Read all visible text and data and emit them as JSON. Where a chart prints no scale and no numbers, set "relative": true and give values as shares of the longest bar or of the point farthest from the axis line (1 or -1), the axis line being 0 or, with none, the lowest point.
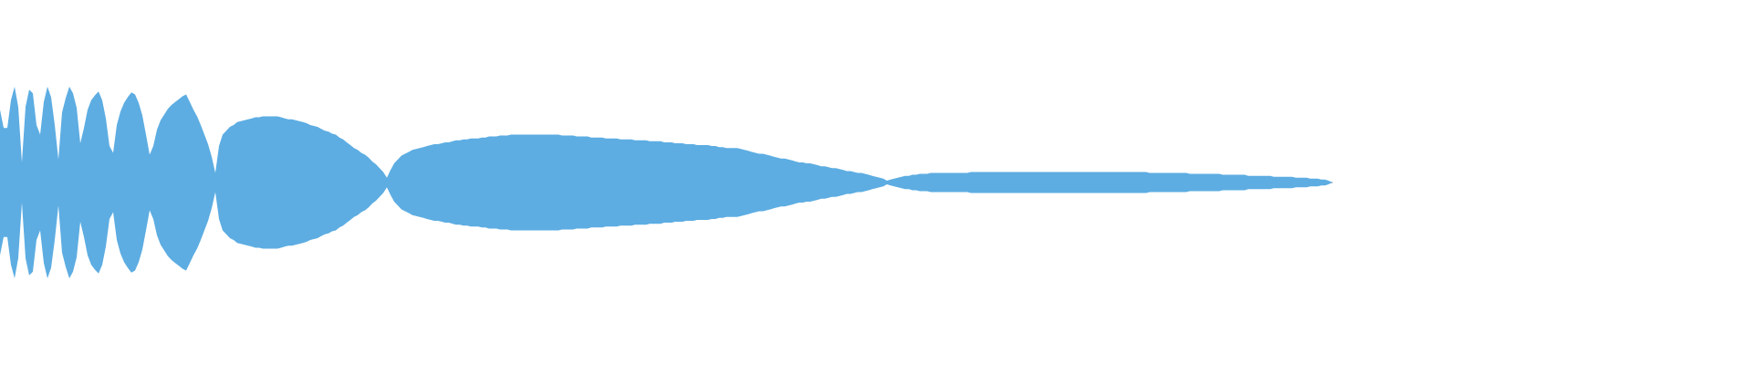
{
  "chart_data": {
    "type": "area",
    "relative": true,
    "categories": [
      null,
      null,
      null,
      null,
      null,
      null,
      null,
      null,
      null,
      null,
      null,
      null,
      null,
      null,
      null,
      null,
      null,
      null,
      null,
      null,
      null,
      null,
      null,
      null,
      null,
      null,
      null,
      null,
      null,
      null,
      null,
      null,
      null,
      null,
      null,
      null,
      null,
      null,
      null,
      null,
      null,
      null,
      null,
      null,
      null,
      null,
      null,
      null,
      null,
      null,
      null,
      null,
      null,
      null,
      null,
      null,
      null,
      null,
      null,
      null,
      null,
      null,
      null,
      null,
      null,
      null,
      null,
      null,
      null,
      null,
      null,
      null,
      null,
      null,
      null,
      null,
      null,
      null,
      null,
      null,
      null,
      null,
      null,
      null,
      null,
      null,
      null,
      null,
      null,
      null,
      null,
      null,
      null,
      null,
      null,
      null,
      null,
      null,
      null,
      null,
      null,
      null,
      null,
      null,
      null,
      null,
      null,
      null,
      null,
      null,
      null,
      null,
      null,
      null,
      null,
      null,
      null,
      null,
      null,
      null,
      null,
      null,
      null,
      null,
      null,
      null,
      null,
      null,
      null,
      null,
      null,
      null,
      null,
      null,
      null,
      null,
      null,
      null,
      null,
      null,
      null,
      null,
      null,
      null,
      null,
      null,
      null,
      null,
      null,
      null,
      null,
      null,
      null,
      null,
      null,
      null,
      null,
      null,
      null,
      null,
      null,
      null,
      null,
      null,
      null,
      null,
      null,
      null,
      null,
      null,
      null,
      null,
      null,
      null,
      null,
      null,
      null,
      null,
      null,
      null,
      null,
      null,
      null,
      null,
      null,
      null,
      null,
      null,
      null,
      null,
      null,
      null,
      null,
      null,
      null,
      null,
      null,
      null,
      null,
      null,
      null,
      null,
      null,
      null,
      null,
      null,
      null,
      null,
      null,
      null,
      null,
      null,
      null,
      null,
      null,
      null,
      null,
      null,
      null,
      null,
      null,
      null,
      null,
      null,
      null,
      null,
      null,
      null,
      null,
      null,
      null,
      null,
      null,
      null,
      null,
      null,
      null,
      null,
      null,
      null,
      null,
      null,
      null,
      null,
      null,
      null,
      null,
      null,
      null,
      null,
      null,
      null,
      null,
      null,
      null,
      null,
      null,
      null,
      null,
      null,
      null,
      null,
      null,
      null,
      null,
      null,
      null,
      null,
      null,
      null,
      null,
      null,
      null,
      null,
      null,
      null,
      null,
      null,
      null,
      null,
      null,
      null,
      null,
      null,
      null,
      null,
      null,
      null,
      null,
      null,
      null,
      null,
      null,
      null,
      null,
      null,
      null,
      null,
      null,
      null,
      null,
      null,
      null,
      null,
      null,
      null,
      null,
      null,
      null,
      null,
      null,
      null,
      null,
      null,
      null,
      null,
      null,
      null,
      null,
      null,
      null,
      null,
      null,
      null,
      null,
      null,
      null,
      null,
      null,
      null,
      null,
      null,
      null,
      null,
      null,
      null,
      null,
      null,
      null,
      null,
      null,
      null,
      null,
      null,
      null,
      null,
      null,
      null,
      null,
      null,
      null,
      null,
      null,
      null,
      null,
      null,
      null,
      null,
      null,
      null,
      null,
      null,
      null,
      null,
      null,
      null
    ],
    "series": [
      {
        "color": "#5dade2",
        "values": [
          0.76,
          0.57,
          0.57,
          0.86,
          1,
          0.79,
          0.21,
          0.79,
          0.97,
          0.93,
          0.6,
          0.5,
          0.84,
          1,
          0.89,
          0.6,
          0.24,
          0.73,
          0.88,
          1,
          0.93,
          0.78,
          0.41,
          0.57,
          0.76,
          0.86,
          0.91,
          0.95,
          0.86,
          0.67,
          0.38,
          0.31,
          0.6,
          0.74,
          0.83,
          0.89,
          0.94,
          0.92,
          0.83,
          0.7,
          0.5,
          0.29,
          0.38,
          0.55,
          0.65,
          0.71,
          0.77,
          0.81,
          0.84,
          0.87,
          0.9,
          0.92,
          0.84,
          0.76,
          0.69,
          0.6,
          0.5,
          0.4,
          0.27,
          0.1,
          0.38,
          0.5,
          0.54,
          0.58,
          0.6,
          0.63,
          0.64,
          0.65,
          0.66,
          0.67,
          0.68,
          0.68,
          0.69,
          0.69,
          0.69,
          0.69,
          0.69,
          0.68,
          0.67,
          0.66,
          0.66,
          0.65,
          0.64,
          0.63,
          0.62,
          0.6,
          0.59,
          0.58,
          0.56,
          0.54,
          0.53,
          0.51,
          0.5,
          0.47,
          0.45,
          0.42,
          0.39,
          0.36,
          0.34,
          0.31,
          0.29,
          0.26,
          0.22,
          0.19,
          0.15,
          0.11,
          0.05,
          0.13,
          0.2,
          0.24,
          0.28,
          0.3,
          0.32,
          0.34,
          0.35,
          0.36,
          0.37,
          0.38,
          0.39,
          0.4,
          0.4,
          0.41,
          0.42,
          0.42,
          0.43,
          0.44,
          0.44,
          0.45,
          0.45,
          0.46,
          0.46,
          0.46,
          0.47,
          0.47,
          0.48,
          0.48,
          0.48,
          0.49,
          0.49,
          0.49,
          0.5,
          0.5,
          0.5,
          0.5,
          0.5,
          0.5,
          0.5,
          0.5,
          0.5,
          0.5,
          0.5,
          0.5,
          0.5,
          0.5,
          0.49,
          0.49,
          0.49,
          0.49,
          0.48,
          0.48,
          0.48,
          0.48,
          0.47,
          0.47,
          0.47,
          0.47,
          0.46,
          0.46,
          0.46,
          0.46,
          0.45,
          0.45,
          0.45,
          0.45,
          0.44,
          0.44,
          0.44,
          0.44,
          0.43,
          0.43,
          0.43,
          0.43,
          0.42,
          0.42,
          0.42,
          0.41,
          0.41,
          0.41,
          0.4,
          0.4,
          0.4,
          0.39,
          0.39,
          0.39,
          0.39,
          0.38,
          0.38,
          0.37,
          0.37,
          0.36,
          0.36,
          0.36,
          0.36,
          0.35,
          0.34,
          0.33,
          0.32,
          0.31,
          0.3,
          0.3,
          0.29,
          0.28,
          0.27,
          0.26,
          0.25,
          0.25,
          0.24,
          0.23,
          0.22,
          0.21,
          0.21,
          0.2,
          0.2,
          0.19,
          0.18,
          0.17,
          0.17,
          0.16,
          0.15,
          0.15,
          0.14,
          0.13,
          0.12,
          0.12,
          0.11,
          0.1,
          0.1,
          0.09,
          0.08,
          0.07,
          0.06,
          0.05,
          0.04,
          0.02,
          0.03,
          0.04,
          0.05,
          0.06,
          0.07,
          0.07,
          0.08,
          0.08,
          0.09,
          0.09,
          0.09,
          0.1,
          0.1,
          0.1,
          0.1,
          0.1,
          0.1,
          0.1,
          0.1,
          0.1,
          0.1,
          0.1,
          0.11,
          0.11,
          0.11,
          0.11,
          0.11,
          0.11,
          0.11,
          0.11,
          0.11,
          0.11,
          0.11,
          0.11,
          0.11,
          0.11,
          0.11,
          0.11,
          0.11,
          0.11,
          0.11,
          0.11,
          0.11,
          0.11,
          0.11,
          0.11,
          0.11,
          0.11,
          0.11,
          0.11,
          0.11,
          0.11,
          0.11,
          0.11,
          0.11,
          0.11,
          0.11,
          0.11,
          0.11,
          0.11,
          0.11,
          0.11,
          0.11,
          0.11,
          0.11,
          0.11,
          0.11,
          0.11,
          0.11,
          0.11,
          0.11,
          0.1,
          0.1,
          0.1,
          0.1,
          0.1,
          0.1,
          0.1,
          0.1,
          0.1,
          0.1,
          0.1,
          0.09,
          0.09,
          0.09,
          0.09,
          0.09,
          0.09,
          0.09,
          0.09,
          0.09,
          0.08,
          0.08,
          0.08,
          0.08,
          0.08,
          0.08,
          0.08,
          0.07,
          0.07,
          0.07,
          0.07,
          0.07,
          0.07,
          0.07,
          0.06,
          0.06,
          0.06,
          0.06,
          0.06,
          0.06,
          0.05,
          0.05,
          0.05,
          0.05,
          0.04,
          0.04,
          0.04,
          0.03,
          0.03,
          0.02,
          0
        ]
      },
      {
        "color": "#5dade2",
        "values": [
          -0.76,
          -0.57,
          -0.57,
          -0.86,
          -1,
          -0.79,
          -0.21,
          -0.79,
          -0.97,
          -0.93,
          -0.6,
          -0.5,
          -0.84,
          -1,
          -0.89,
          -0.6,
          -0.24,
          -0.73,
          -0.88,
          -1,
          -0.93,
          -0.78,
          -0.41,
          -0.57,
          -0.76,
          -0.86,
          -0.91,
          -0.95,
          -0.86,
          -0.67,
          -0.38,
          -0.31,
          -0.6,
          -0.74,
          -0.83,
          -0.89,
          -0.94,
          -0.92,
          -0.83,
          -0.7,
          -0.5,
          -0.29,
          -0.38,
          -0.55,
          -0.65,
          -0.71,
          -0.77,
          -0.81,
          -0.84,
          -0.87,
          -0.9,
          -0.92,
          -0.84,
          -0.76,
          -0.69,
          -0.6,
          -0.5,
          -0.4,
          -0.27,
          -0.1,
          -0.38,
          -0.5,
          -0.54,
          -0.58,
          -0.6,
          -0.63,
          -0.64,
          -0.65,
          -0.66,
          -0.67,
          -0.68,
          -0.68,
          -0.69,
          -0.69,
          -0.69,
          -0.69,
          -0.69,
          -0.68,
          -0.67,
          -0.66,
          -0.66,
          -0.65,
          -0.64,
          -0.63,
          -0.62,
          -0.6,
          -0.59,
          -0.58,
          -0.56,
          -0.54,
          -0.53,
          -0.51,
          -0.5,
          -0.47,
          -0.45,
          -0.42,
          -0.39,
          -0.36,
          -0.34,
          -0.31,
          -0.29,
          -0.26,
          -0.22,
          -0.19,
          -0.15,
          -0.11,
          -0.05,
          -0.13,
          -0.2,
          -0.24,
          -0.28,
          -0.3,
          -0.32,
          -0.34,
          -0.35,
          -0.36,
          -0.37,
          -0.38,
          -0.39,
          -0.4,
          -0.4,
          -0.41,
          -0.42,
          -0.42,
          -0.43,
          -0.44,
          -0.44,
          -0.45,
          -0.45,
          -0.46,
          -0.46,
          -0.46,
          -0.47,
          -0.47,
          -0.48,
          -0.48,
          -0.48,
          -0.49,
          -0.49,
          -0.49,
          -0.5,
          -0.5,
          -0.5,
          -0.5,
          -0.5,
          -0.5,
          -0.5,
          -0.5,
          -0.5,
          -0.5,
          -0.5,
          -0.5,
          -0.5,
          -0.5,
          -0.49,
          -0.49,
          -0.49,
          -0.49,
          -0.48,
          -0.48,
          -0.48,
          -0.48,
          -0.47,
          -0.47,
          -0.47,
          -0.47,
          -0.46,
          -0.46,
          -0.46,
          -0.46,
          -0.45,
          -0.45,
          -0.45,
          -0.45,
          -0.44,
          -0.44,
          -0.44,
          -0.44,
          -0.43,
          -0.43,
          -0.43,
          -0.43,
          -0.42,
          -0.42,
          -0.42,
          -0.41,
          -0.41,
          -0.41,
          -0.4,
          -0.4,
          -0.4,
          -0.39,
          -0.39,
          -0.39,
          -0.39,
          -0.38,
          -0.38,
          -0.37,
          -0.37,
          -0.36,
          -0.36,
          -0.36,
          -0.36,
          -0.35,
          -0.34,
          -0.33,
          -0.32,
          -0.31,
          -0.3,
          -0.3,
          -0.29,
          -0.28,
          -0.27,
          -0.26,
          -0.25,
          -0.25,
          -0.24,
          -0.23,
          -0.22,
          -0.21,
          -0.21,
          -0.2,
          -0.2,
          -0.19,
          -0.18,
          -0.17,
          -0.17,
          -0.16,
          -0.15,
          -0.15,
          -0.14,
          -0.13,
          -0.12,
          -0.12,
          -0.11,
          -0.1,
          -0.1,
          -0.09,
          -0.08,
          -0.07,
          -0.06,
          -0.05,
          -0.04,
          -0.02,
          -0.03,
          -0.04,
          -0.05,
          -0.06,
          -0.07,
          -0.07,
          -0.08,
          -0.08,
          -0.09,
          -0.09,
          -0.09,
          -0.1,
          -0.1,
          -0.1,
          -0.1,
          -0.1,
          -0.1,
          -0.1,
          -0.1,
          -0.1,
          -0.1,
          -0.1,
          -0.11,
          -0.11,
          -0.11,
          -0.11,
          -0.11,
          -0.11,
          -0.11,
          -0.11,
          -0.11,
          -0.11,
          -0.11,
          -0.11,
          -0.11,
          -0.11,
          -0.11,
          -0.11,
          -0.11,
          -0.11,
          -0.11,
          -0.11,
          -0.11,
          -0.11,
          -0.11,
          -0.11,
          -0.11,
          -0.11,
          -0.11,
          -0.11,
          -0.11,
          -0.11,
          -0.11,
          -0.11,
          -0.11,
          -0.11,
          -0.11,
          -0.11,
          -0.11,
          -0.11,
          -0.11,
          -0.11,
          -0.11,
          -0.11,
          -0.11,
          -0.11,
          -0.11,
          -0.11,
          -0.11,
          -0.11,
          -0.11,
          -0.1,
          -0.1,
          -0.1,
          -0.1,
          -0.1,
          -0.1,
          -0.1,
          -0.1,
          -0.1,
          -0.1,
          -0.1,
          -0.09,
          -0.09,
          -0.09,
          -0.09,
          -0.09,
          -0.09,
          -0.09,
          -0.09,
          -0.09,
          -0.08,
          -0.08,
          -0.08,
          -0.08,
          -0.08,
          -0.08,
          -0.08,
          -0.07,
          -0.07,
          -0.07,
          -0.07,
          -0.07,
          -0.07,
          -0.07,
          -0.06,
          -0.06,
          -0.06,
          -0.06,
          -0.06,
          -0.06,
          -0.05,
          -0.05,
          -0.05,
          -0.05,
          -0.04,
          -0.04,
          -0.04,
          -0.03,
          -0.03,
          -0.02,
          0
        ]
      }
    ]
  }
}
